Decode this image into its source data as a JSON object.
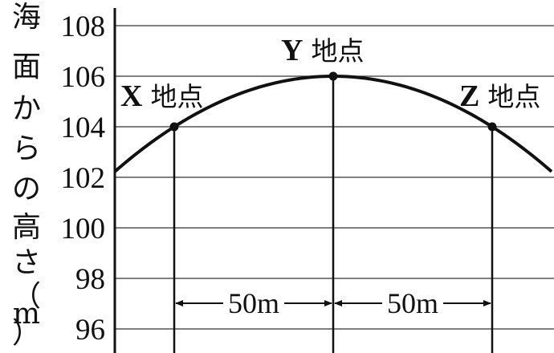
{
  "ylabel_chars": [
    "海",
    "面",
    "か",
    "ら",
    "の",
    "高",
    "さ",
    "（",
    "m",
    "）"
  ],
  "y_ticks": [
    "108",
    "106",
    "104",
    "102",
    "100",
    "98",
    "96"
  ],
  "y_tick_values": [
    108,
    106,
    104,
    102,
    100,
    98,
    96
  ],
  "points": [
    {
      "letter": "X",
      "suffix": "地点",
      "height": 104
    },
    {
      "letter": "Y",
      "suffix": "地点",
      "height": 106
    },
    {
      "letter": "Z",
      "suffix": "地点",
      "height": 104
    }
  ],
  "distances": [
    "50m",
    "50m"
  ],
  "colors": {
    "ink": "#111111",
    "grid": "#333333"
  }
}
